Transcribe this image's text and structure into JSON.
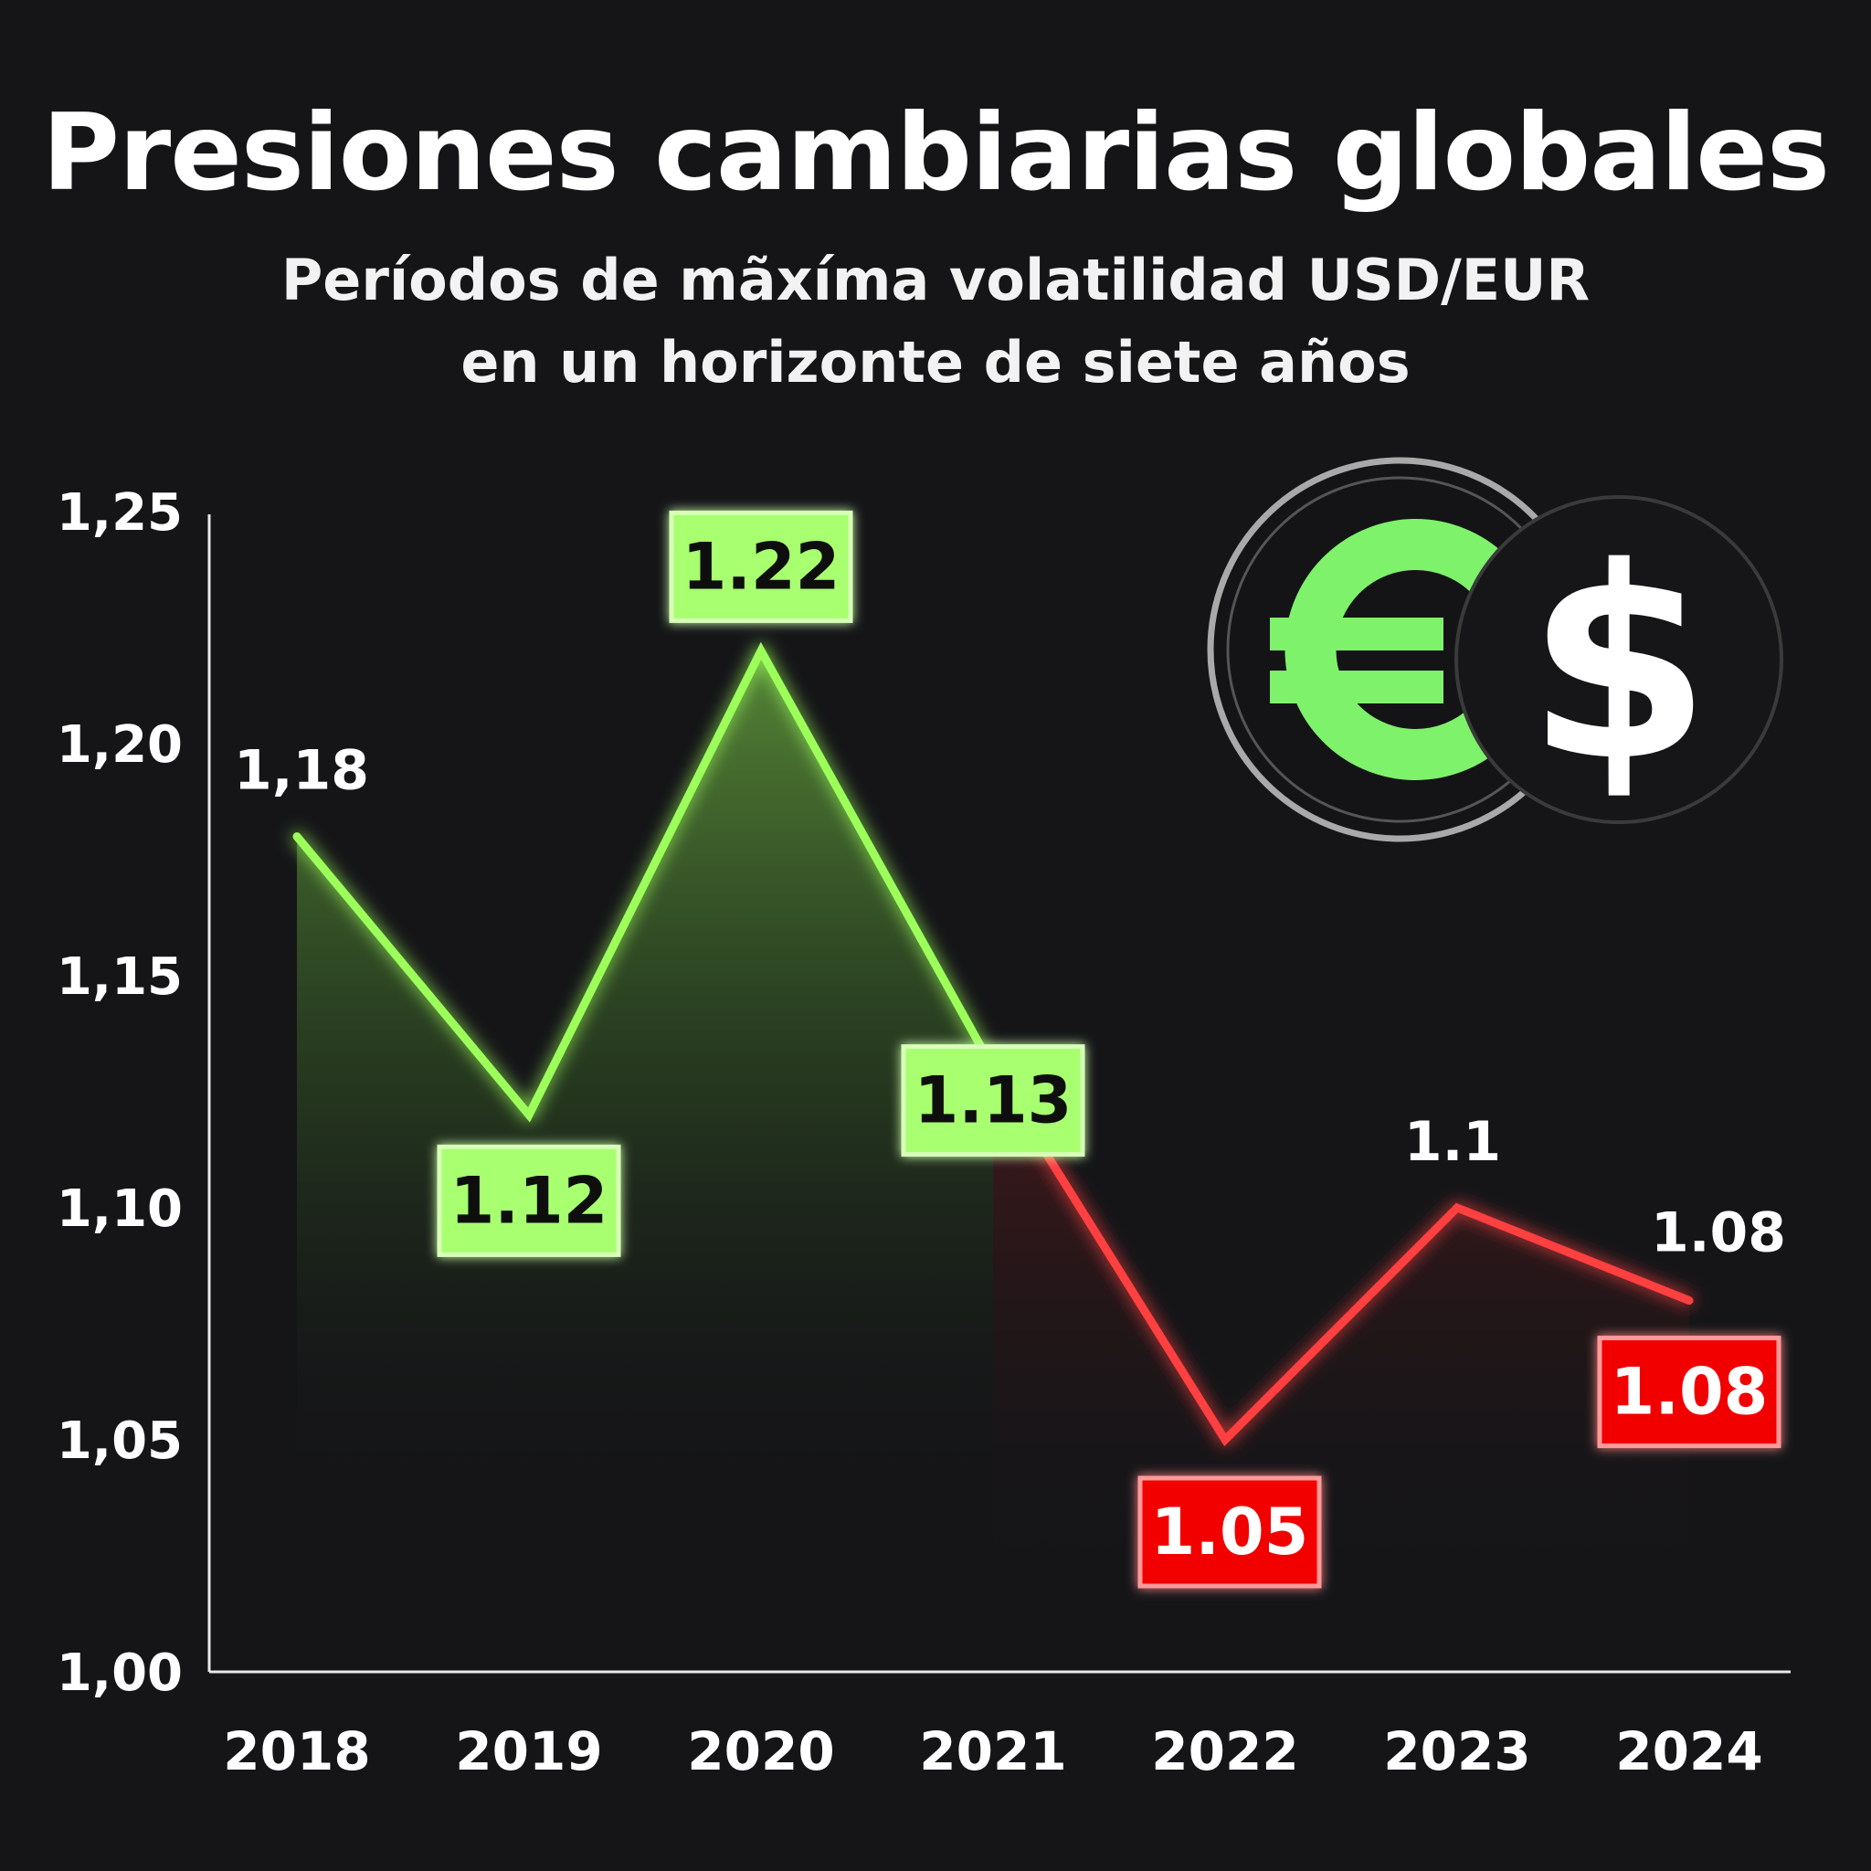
{
  "header": {
    "title": "Presiones cambiarias globales",
    "subtitle_line1": "Períodos de mãxíma volatilidad USD/EUR",
    "subtitle_line2": "en un horizonte de siete años"
  },
  "icons": {
    "left": "euro-coin-icon",
    "right": "dollar-coin-icon"
  },
  "colors": {
    "background": "#151518",
    "green": "#9cff5a",
    "green_label_bg": "#a8ff70",
    "red": "#ff4040",
    "red_label_bg": "#f20000",
    "euro": "#7ef26a"
  },
  "chart_data": {
    "type": "line",
    "title": "Presiones cambiarias globales",
    "x": [
      "2018",
      "2019",
      "2020",
      "2021",
      "2022",
      "2023",
      "2024"
    ],
    "values": [
      1.18,
      1.12,
      1.22,
      1.13,
      1.05,
      1.1,
      1.08
    ],
    "ylim": [
      1.0,
      1.25
    ],
    "yticks": [
      "1,00",
      "1,05",
      "1,10",
      "1,15",
      "1,20",
      "1,25"
    ],
    "segments": [
      {
        "from": 0,
        "to": 3,
        "color": "#9cff5a"
      },
      {
        "from": 3,
        "to": 6,
        "color": "#ff4040"
      }
    ],
    "plain_labels": [
      "1,18",
      "1.1",
      "1.08"
    ],
    "boxed_labels": [
      {
        "text": "1.12",
        "style": "green"
      },
      {
        "text": "1.22",
        "style": "green"
      },
      {
        "text": "1.13",
        "style": "green"
      },
      {
        "text": "1.05",
        "style": "red"
      },
      {
        "text": "1.08",
        "style": "red"
      }
    ],
    "grid": false,
    "legend": "none"
  }
}
